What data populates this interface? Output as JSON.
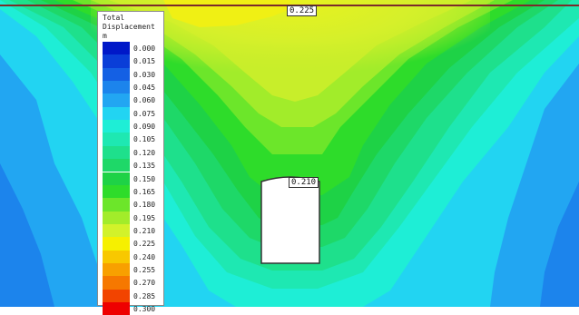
{
  "legend": {
    "title": "Total\nDisplacement\nm",
    "levels": [
      {
        "value": "0.000",
        "color": "#0018c8"
      },
      {
        "value": "0.015",
        "color": "#0a3ed8"
      },
      {
        "value": "0.030",
        "color": "#1460e4"
      },
      {
        "value": "0.045",
        "color": "#1c84ec"
      },
      {
        "value": "0.060",
        "color": "#22a6f2"
      },
      {
        "value": "0.075",
        "color": "#22d4f2"
      },
      {
        "value": "0.090",
        "color": "#1eeed6"
      },
      {
        "value": "0.105",
        "color": "#1ee8b2"
      },
      {
        "value": "0.120",
        "color": "#1ee08c"
      },
      {
        "value": "0.135",
        "color": "#1ed868"
      },
      {
        "value": "0.150",
        "color": "#1ed246"
      },
      {
        "value": "0.165",
        "color": "#2edc2a"
      },
      {
        "value": "0.180",
        "color": "#6ce62a"
      },
      {
        "value": "0.195",
        "color": "#a2ec2a"
      },
      {
        "value": "0.210",
        "color": "#d2f22a"
      },
      {
        "value": "0.225",
        "color": "#f6f000"
      },
      {
        "value": "0.240",
        "color": "#f8c800"
      },
      {
        "value": "0.255",
        "color": "#f8a000"
      },
      {
        "value": "0.270",
        "color": "#f67800"
      },
      {
        "value": "0.285",
        "color": "#f24400"
      },
      {
        "value": "0.300",
        "color": "#ee0000"
      }
    ]
  },
  "callouts": {
    "top": "0.225",
    "tunnel": "0.210"
  }
}
